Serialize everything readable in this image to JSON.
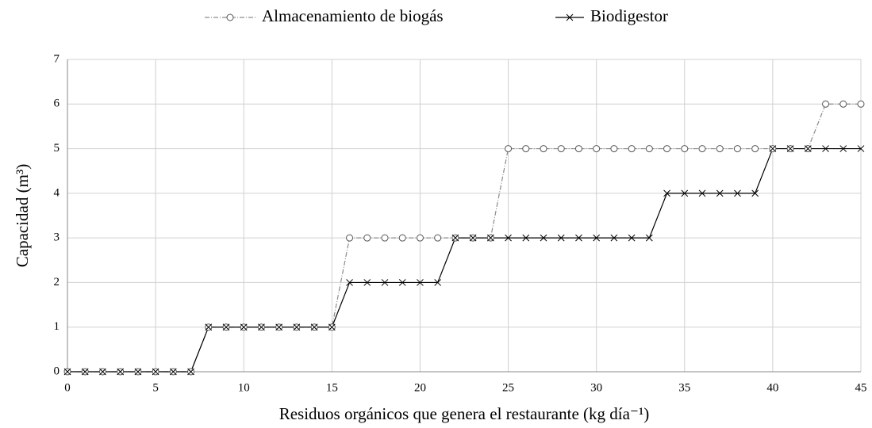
{
  "chart_data": {
    "type": "line",
    "x": [
      0,
      1,
      2,
      3,
      4,
      5,
      6,
      7,
      8,
      9,
      10,
      11,
      12,
      13,
      14,
      15,
      16,
      17,
      18,
      19,
      20,
      21,
      22,
      23,
      24,
      25,
      26,
      27,
      28,
      29,
      30,
      31,
      32,
      33,
      34,
      35,
      36,
      37,
      38,
      39,
      40,
      41,
      42,
      43,
      44,
      45
    ],
    "series": [
      {
        "name": "Almacenamiento de biogás",
        "color": "#8c8c8c",
        "dash": "6,2,1,2",
        "marker": "circle",
        "values": [
          0,
          0,
          0,
          0,
          0,
          0,
          0,
          0,
          1,
          1,
          1,
          1,
          1,
          1,
          1,
          1,
          3,
          3,
          3,
          3,
          3,
          3,
          3,
          3,
          3,
          5,
          5,
          5,
          5,
          5,
          5,
          5,
          5,
          5,
          5,
          5,
          5,
          5,
          5,
          5,
          5,
          5,
          5,
          6,
          6,
          6
        ]
      },
      {
        "name": "Biodigestor",
        "color": "#000000",
        "dash": "none",
        "marker": "cross",
        "values": [
          0,
          0,
          0,
          0,
          0,
          0,
          0,
          0,
          1,
          1,
          1,
          1,
          1,
          1,
          1,
          1,
          2,
          2,
          2,
          2,
          2,
          2,
          3,
          3,
          3,
          3,
          3,
          3,
          3,
          3,
          3,
          3,
          3,
          3,
          4,
          4,
          4,
          4,
          4,
          4,
          5,
          5,
          5,
          5,
          5,
          5
        ]
      }
    ],
    "xlabel": "Residuos orgánicos que genera el restaurante (kg día⁻¹)",
    "ylabel": "Capacidad (m³)",
    "xlim": [
      0,
      45
    ],
    "xticks": [
      0,
      5,
      10,
      15,
      20,
      25,
      30,
      35,
      40,
      45
    ],
    "ylim": [
      0,
      7
    ],
    "yticks": [
      0,
      1,
      2,
      3,
      4,
      5,
      6,
      7
    ],
    "grid": true,
    "legend": "top"
  }
}
